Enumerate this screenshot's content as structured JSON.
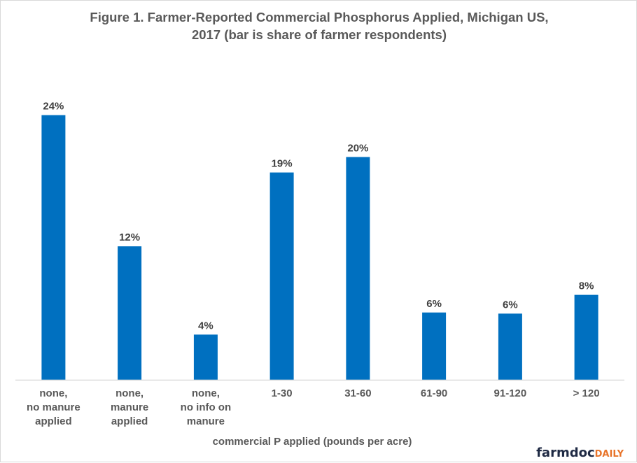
{
  "chart_data": {
    "type": "bar",
    "title": "Figure 1.  Farmer-Reported Commercial Phosphorus Applied, Michigan US, 2017 (bar is share of farmer respondents)",
    "title_lines": [
      "Figure 1.  Farmer-Reported Commercial Phosphorus Applied, Michigan US,",
      "2017 (bar is share of farmer respondents)"
    ],
    "xlabel": "commercial P applied (pounds per acre)",
    "ylabel": "",
    "categories": [
      "none, no manure applied",
      "none, manure applied",
      "none, no info on manure",
      "1-30",
      "31-60",
      "61-90",
      "91-120",
      "> 120"
    ],
    "category_lines": [
      [
        "none,",
        "no manure",
        "applied"
      ],
      [
        "none,",
        "manure",
        "applied"
      ],
      [
        "none,",
        "no info on",
        "manure"
      ],
      [
        "1-30"
      ],
      [
        "31-60"
      ],
      [
        "61-90"
      ],
      [
        "91-120"
      ],
      [
        "> 120"
      ]
    ],
    "series": [
      {
        "name": "share of farmer respondents",
        "color": "#0070c0",
        "values": [
          24.0,
          12.1,
          4.1,
          18.8,
          20.2,
          6.1,
          6.0,
          7.7
        ],
        "data_labels": [
          "24%",
          "12%",
          "4%",
          "19%",
          "20%",
          "6%",
          "6%",
          "8%"
        ]
      }
    ],
    "ylim": [
      0,
      27.4
    ],
    "y_unit": "%",
    "grid": false,
    "legend": "none",
    "y_axis_visible": false
  },
  "branding": {
    "logo_main": "farmdoc",
    "logo_accent": "DAILY",
    "logo_main_color": "#1f2a44",
    "logo_accent_color": "#e8742a"
  },
  "colors": {
    "bar": "#0070c0",
    "axis_line": "#d9d9d9",
    "text": "#595959",
    "data_label": "#404040"
  }
}
